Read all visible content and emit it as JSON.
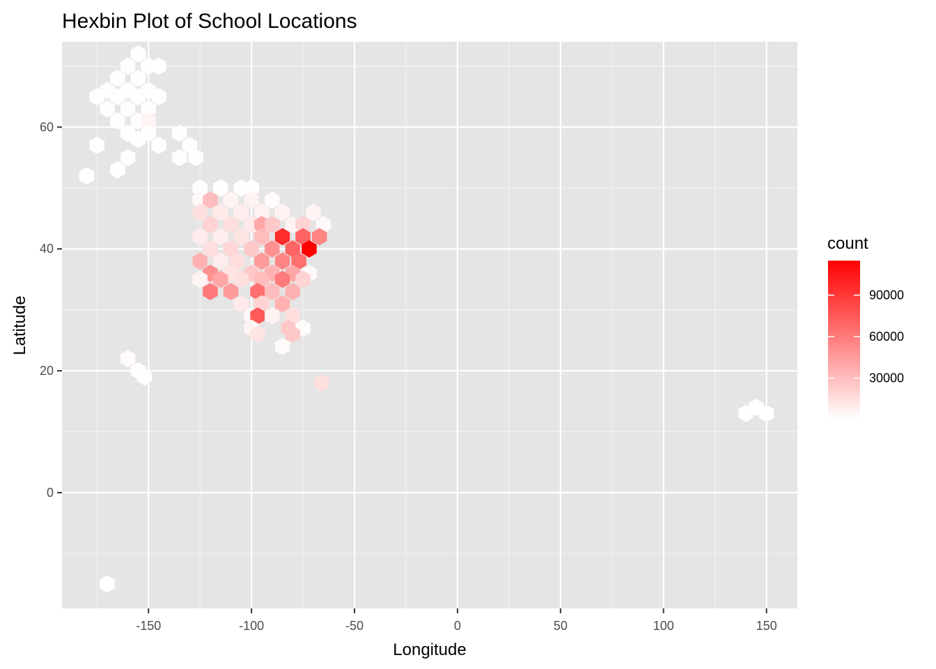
{
  "chart_data": {
    "type": "hexbin",
    "title": "Hexbin Plot of School Locations",
    "xlabel": "Longitude",
    "ylabel": "Latitude",
    "xlim": [
      -192,
      165
    ],
    "ylim": [
      -19,
      74
    ],
    "x_ticks": [
      -150,
      -100,
      -50,
      0,
      50,
      100,
      150
    ],
    "y_ticks": [
      0,
      20,
      40,
      60
    ],
    "x_tick_labels": [
      "-150",
      "-100",
      "-50",
      "0",
      "50",
      "100",
      "150"
    ],
    "y_tick_labels": [
      "0",
      "20",
      "40",
      "60"
    ],
    "grid": true,
    "background": "#e5e5e5",
    "colors": {
      "low": "#ffffff",
      "high": "#ff0000"
    },
    "legend": {
      "title": "count",
      "position": "right",
      "min": 1,
      "max": 115000,
      "breaks": [
        30000,
        60000,
        90000
      ],
      "labels": [
        "30000",
        "60000",
        "90000"
      ]
    },
    "bins": [
      {
        "x": -155,
        "y": 72,
        "count": 200
      },
      {
        "x": -160,
        "y": 70,
        "count": 300
      },
      {
        "x": -150,
        "y": 70,
        "count": 300
      },
      {
        "x": -145,
        "y": 70,
        "count": 200
      },
      {
        "x": -165,
        "y": 68,
        "count": 300
      },
      {
        "x": -155,
        "y": 68,
        "count": 500
      },
      {
        "x": -170,
        "y": 66,
        "count": 300
      },
      {
        "x": -160,
        "y": 66,
        "count": 700
      },
      {
        "x": -150,
        "y": 66,
        "count": 500
      },
      {
        "x": -175,
        "y": 65,
        "count": 300
      },
      {
        "x": -165,
        "y": 65,
        "count": 600
      },
      {
        "x": -155,
        "y": 65,
        "count": 900
      },
      {
        "x": -145,
        "y": 65,
        "count": 400
      },
      {
        "x": -170,
        "y": 63,
        "count": 400
      },
      {
        "x": -160,
        "y": 63,
        "count": 800
      },
      {
        "x": -150,
        "y": 63,
        "count": 600
      },
      {
        "x": -165,
        "y": 61,
        "count": 500
      },
      {
        "x": -155,
        "y": 61,
        "count": 1200
      },
      {
        "x": -150,
        "y": 61,
        "count": 5000
      },
      {
        "x": -160,
        "y": 59,
        "count": 400
      },
      {
        "x": -150,
        "y": 59,
        "count": 600
      },
      {
        "x": -135,
        "y": 59,
        "count": 300
      },
      {
        "x": -155,
        "y": 58,
        "count": 300
      },
      {
        "x": -175,
        "y": 57,
        "count": 200
      },
      {
        "x": -145,
        "y": 57,
        "count": 400
      },
      {
        "x": -130,
        "y": 57,
        "count": 300
      },
      {
        "x": -160,
        "y": 55,
        "count": 300
      },
      {
        "x": -135,
        "y": 55,
        "count": 300
      },
      {
        "x": -127,
        "y": 55,
        "count": 300
      },
      {
        "x": -165,
        "y": 53,
        "count": 200
      },
      {
        "x": -180,
        "y": 52,
        "count": 200
      },
      {
        "x": -125,
        "y": 50,
        "count": 500
      },
      {
        "x": -115,
        "y": 50,
        "count": 600
      },
      {
        "x": -105,
        "y": 50,
        "count": 800
      },
      {
        "x": -100,
        "y": 50,
        "count": 400
      },
      {
        "x": -125,
        "y": 48,
        "count": 3000
      },
      {
        "x": -120,
        "y": 48,
        "count": 30000
      },
      {
        "x": -110,
        "y": 48,
        "count": 5000
      },
      {
        "x": -100,
        "y": 48,
        "count": 6000
      },
      {
        "x": -90,
        "y": 48,
        "count": 2000
      },
      {
        "x": -125,
        "y": 46,
        "count": 15000
      },
      {
        "x": -115,
        "y": 46,
        "count": 10000
      },
      {
        "x": -105,
        "y": 46,
        "count": 8000
      },
      {
        "x": -95,
        "y": 46,
        "count": 6000
      },
      {
        "x": -85,
        "y": 46,
        "count": 6000
      },
      {
        "x": -70,
        "y": 46,
        "count": 5000
      },
      {
        "x": -120,
        "y": 44,
        "count": 20000
      },
      {
        "x": -110,
        "y": 44,
        "count": 15000
      },
      {
        "x": -100,
        "y": 44,
        "count": 10000
      },
      {
        "x": -95,
        "y": 44,
        "count": 40000
      },
      {
        "x": -90,
        "y": 44,
        "count": 25000
      },
      {
        "x": -80,
        "y": 44,
        "count": 6000
      },
      {
        "x": -75,
        "y": 44,
        "count": 20000
      },
      {
        "x": -65,
        "y": 44,
        "count": 3000
      },
      {
        "x": -125,
        "y": 42,
        "count": 8000
      },
      {
        "x": -115,
        "y": 42,
        "count": 8000
      },
      {
        "x": -105,
        "y": 42,
        "count": 12000
      },
      {
        "x": -95,
        "y": 42,
        "count": 30000
      },
      {
        "x": -85,
        "y": 42,
        "count": 95000
      },
      {
        "x": -75,
        "y": 42,
        "count": 70000
      },
      {
        "x": -67,
        "y": 42,
        "count": 55000
      },
      {
        "x": -120,
        "y": 40,
        "count": 15000
      },
      {
        "x": -110,
        "y": 40,
        "count": 18000
      },
      {
        "x": -100,
        "y": 40,
        "count": 25000
      },
      {
        "x": -90,
        "y": 40,
        "count": 50000
      },
      {
        "x": -80,
        "y": 40,
        "count": 70000
      },
      {
        "x": -72,
        "y": 40,
        "count": 115000
      },
      {
        "x": -125,
        "y": 38,
        "count": 35000
      },
      {
        "x": -115,
        "y": 38,
        "count": 8000
      },
      {
        "x": -107,
        "y": 38,
        "count": 15000
      },
      {
        "x": -95,
        "y": 38,
        "count": 45000
      },
      {
        "x": -85,
        "y": 38,
        "count": 55000
      },
      {
        "x": -77,
        "y": 38,
        "count": 65000
      },
      {
        "x": -120,
        "y": 36,
        "count": 50000
      },
      {
        "x": -110,
        "y": 36,
        "count": 12000
      },
      {
        "x": -100,
        "y": 36,
        "count": 25000
      },
      {
        "x": -90,
        "y": 36,
        "count": 35000
      },
      {
        "x": -80,
        "y": 36,
        "count": 40000
      },
      {
        "x": -72,
        "y": 36,
        "count": 3000
      },
      {
        "x": -125,
        "y": 35,
        "count": 5000
      },
      {
        "x": -115,
        "y": 35,
        "count": 40000
      },
      {
        "x": -105,
        "y": 35,
        "count": 15000
      },
      {
        "x": -95,
        "y": 35,
        "count": 30000
      },
      {
        "x": -85,
        "y": 35,
        "count": 60000
      },
      {
        "x": -75,
        "y": 35,
        "count": 20000
      },
      {
        "x": -120,
        "y": 33,
        "count": 60000
      },
      {
        "x": -110,
        "y": 33,
        "count": 45000
      },
      {
        "x": -97,
        "y": 33,
        "count": 65000
      },
      {
        "x": -90,
        "y": 33,
        "count": 30000
      },
      {
        "x": -80,
        "y": 33,
        "count": 35000
      },
      {
        "x": -105,
        "y": 31,
        "count": 10000
      },
      {
        "x": -95,
        "y": 31,
        "count": 20000
      },
      {
        "x": -85,
        "y": 31,
        "count": 35000
      },
      {
        "x": -100,
        "y": 29,
        "count": 3000
      },
      {
        "x": -97,
        "y": 29,
        "count": 75000
      },
      {
        "x": -90,
        "y": 29,
        "count": 6000
      },
      {
        "x": -80,
        "y": 29,
        "count": 15000
      },
      {
        "x": -100,
        "y": 27,
        "count": 5000
      },
      {
        "x": -82,
        "y": 27,
        "count": 25000
      },
      {
        "x": -75,
        "y": 27,
        "count": 2000
      },
      {
        "x": -97,
        "y": 26,
        "count": 12000
      },
      {
        "x": -80,
        "y": 26,
        "count": 25000
      },
      {
        "x": -85,
        "y": 24,
        "count": 2000
      },
      {
        "x": -160,
        "y": 22,
        "count": 2000
      },
      {
        "x": -155,
        "y": 20,
        "count": 1500
      },
      {
        "x": -152,
        "y": 19,
        "count": 1000
      },
      {
        "x": -66,
        "y": 18,
        "count": 15000
      },
      {
        "x": 145,
        "y": 14,
        "count": 200
      },
      {
        "x": 140,
        "y": 13,
        "count": 300
      },
      {
        "x": 150,
        "y": 13,
        "count": 200
      },
      {
        "x": -170,
        "y": -15,
        "count": 200
      }
    ]
  }
}
